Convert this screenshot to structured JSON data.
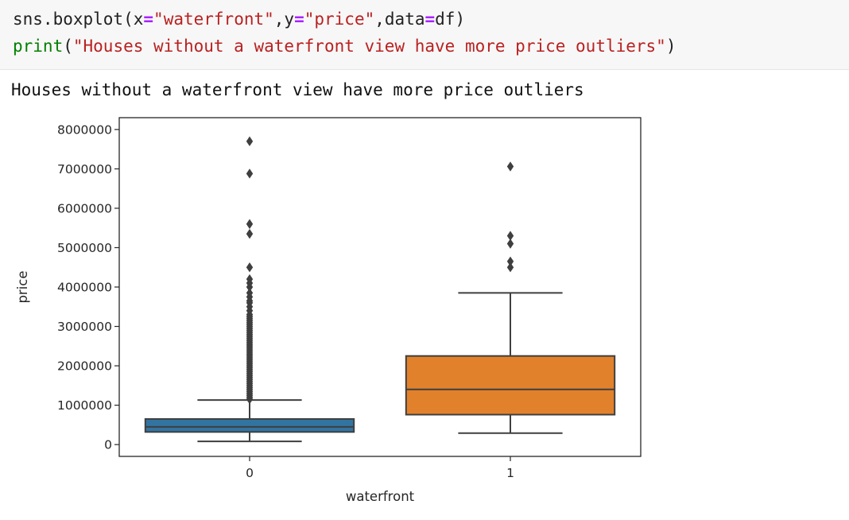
{
  "code": {
    "line1": {
      "fn": "sns.boxplot",
      "open": "(",
      "arg1_key": "x",
      "eq1": "=",
      "arg1_val": "\"waterfront\"",
      "comma1": ",",
      "arg2_key": "y",
      "eq2": "=",
      "arg2_val": "\"price\"",
      "comma2": ",",
      "arg3_key": "data",
      "eq3": "=",
      "arg3_val": "df",
      "close": ")"
    },
    "line2": {
      "fn": "print",
      "open": "(",
      "str": "\"Houses without a waterfront view have more price outliers\"",
      "close": ")"
    }
  },
  "output": {
    "text": "Houses without a waterfront view have more price outliers"
  },
  "colors": {
    "box_0": "#3274a1",
    "box_1": "#e1812c",
    "line": "#3f3f3f",
    "axis": "#262626"
  },
  "chart_data": {
    "type": "box",
    "xlabel": "waterfront",
    "ylabel": "price",
    "categories": [
      "0",
      "1"
    ],
    "ylim": [
      -300000,
      8300000
    ],
    "yticks": [
      0,
      1000000,
      2000000,
      3000000,
      4000000,
      5000000,
      6000000,
      7000000,
      8000000
    ],
    "ytick_labels": [
      "0",
      "1000000",
      "2000000",
      "3000000",
      "4000000",
      "5000000",
      "6000000",
      "7000000",
      "8000000"
    ],
    "boxes": [
      {
        "category": "0",
        "whisker_low": 80000,
        "q1": 320000,
        "median": 450000,
        "q3": 650000,
        "whisker_high": 1130000,
        "outliers": [
          1150000,
          1200000,
          1250000,
          1300000,
          1350000,
          1400000,
          1450000,
          1500000,
          1550000,
          1600000,
          1650000,
          1700000,
          1750000,
          1800000,
          1850000,
          1900000,
          1950000,
          2000000,
          2050000,
          2100000,
          2150000,
          2200000,
          2250000,
          2300000,
          2350000,
          2400000,
          2450000,
          2500000,
          2550000,
          2600000,
          2650000,
          2700000,
          2750000,
          2800000,
          2850000,
          2900000,
          2950000,
          3000000,
          3050000,
          3100000,
          3150000,
          3200000,
          3250000,
          3300000,
          3400000,
          3500000,
          3600000,
          3650000,
          3750000,
          3850000,
          4000000,
          4100000,
          4200000,
          4500000,
          5350000,
          5600000,
          6880000,
          7700000
        ]
      },
      {
        "category": "1",
        "whisker_low": 290000,
        "q1": 760000,
        "median": 1400000,
        "q3": 2250000,
        "whisker_high": 3850000,
        "outliers": [
          4500000,
          4650000,
          5100000,
          5300000,
          7060000
        ]
      }
    ]
  }
}
